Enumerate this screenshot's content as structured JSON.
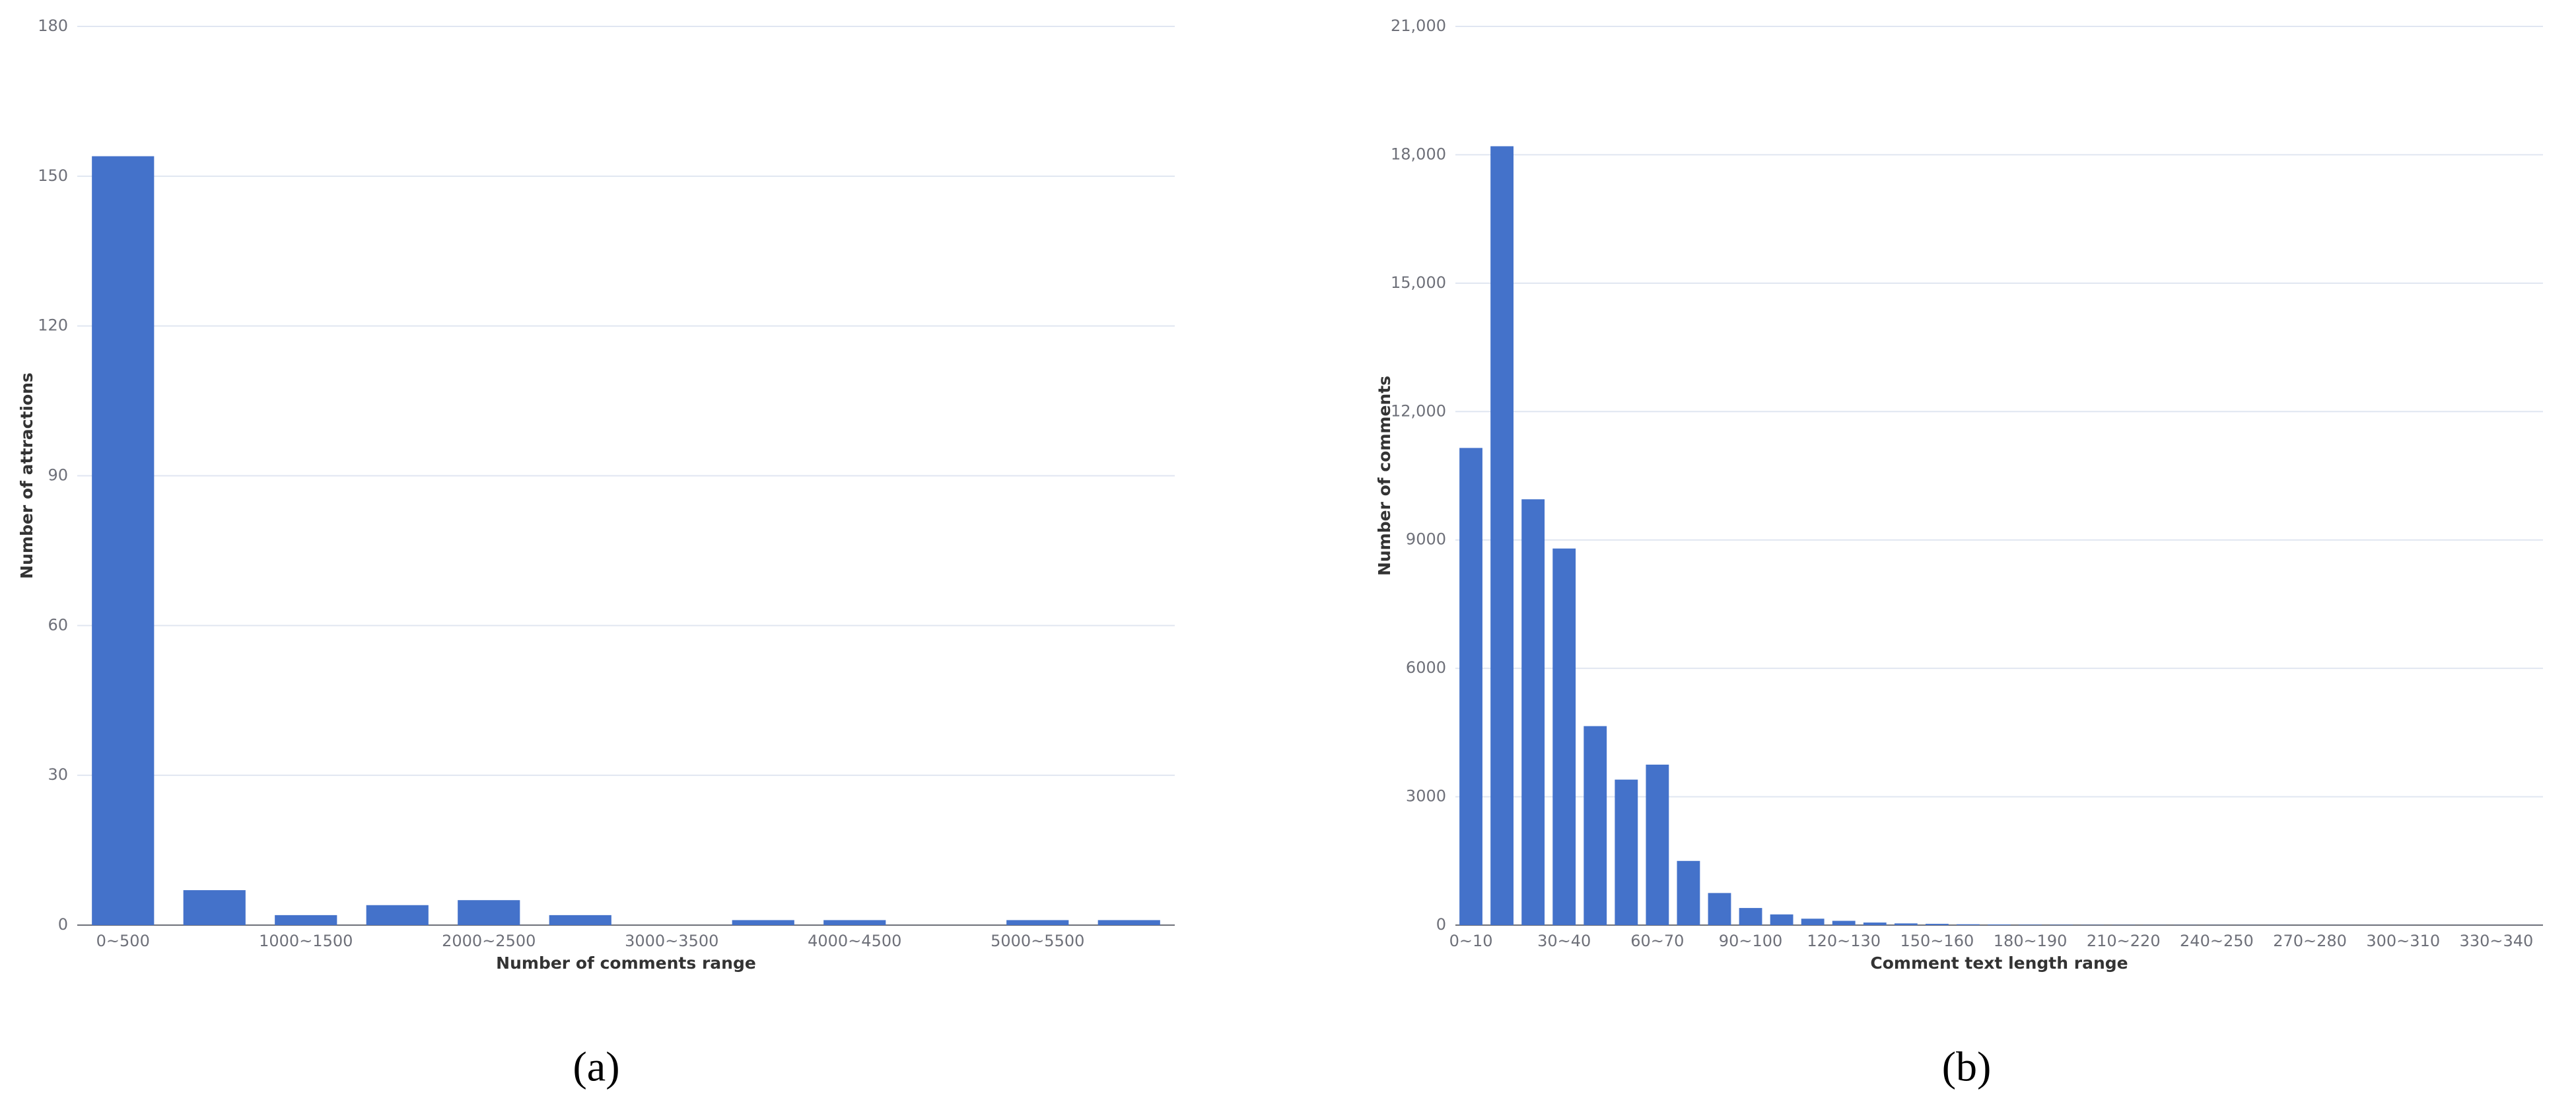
{
  "chart_data": [
    {
      "type": "bar",
      "caption": "(a)",
      "y_label": "Number of attractions",
      "x_label": "Number of comments range",
      "color": "#4472ca",
      "categories": [
        "0~500",
        null,
        "1000~1500",
        null,
        "2000~2500",
        null,
        "3000~3500",
        null,
        "4000~4500",
        null,
        "5000~5500",
        null
      ],
      "values": [
        154,
        7,
        2,
        4,
        5,
        2,
        0,
        1,
        1,
        0,
        1,
        1
      ],
      "ylim": [
        0,
        180
      ],
      "yticks": [
        0,
        30,
        60,
        90,
        120,
        150,
        180
      ],
      "grid": true
    },
    {
      "type": "bar",
      "caption": "(b)",
      "y_label": "Number of comments",
      "x_label": "Comment text length range",
      "color": "#4472ca",
      "categories": [
        "0~10",
        null,
        null,
        "30~40",
        null,
        null,
        "60~70",
        null,
        null,
        "90~100",
        null,
        null,
        "120~130",
        null,
        null,
        "150~160",
        null,
        null,
        "180~190",
        null,
        null,
        "210~220",
        null,
        null,
        "240~250",
        null,
        null,
        "270~280",
        null,
        null,
        "300~310",
        null,
        null,
        "330~340",
        null
      ],
      "values": [
        11150,
        18200,
        9950,
        8800,
        4650,
        3400,
        3750,
        1500,
        750,
        400,
        250,
        150,
        100,
        60,
        40,
        30,
        20,
        15,
        10,
        8,
        5,
        4,
        3,
        3,
        2,
        2,
        2,
        1,
        1,
        1,
        1,
        1,
        1,
        1,
        1
      ],
      "ylim": [
        0,
        21000
      ],
      "yticks": [
        0,
        3000,
        6000,
        9000,
        {
          "value": 12000,
          "label": "12,000"
        },
        {
          "value": 15000,
          "label": "15,000"
        },
        {
          "value": 18000,
          "label": "18,000"
        },
        {
          "value": 21000,
          "label": "21,000"
        }
      ],
      "grid": true
    }
  ]
}
